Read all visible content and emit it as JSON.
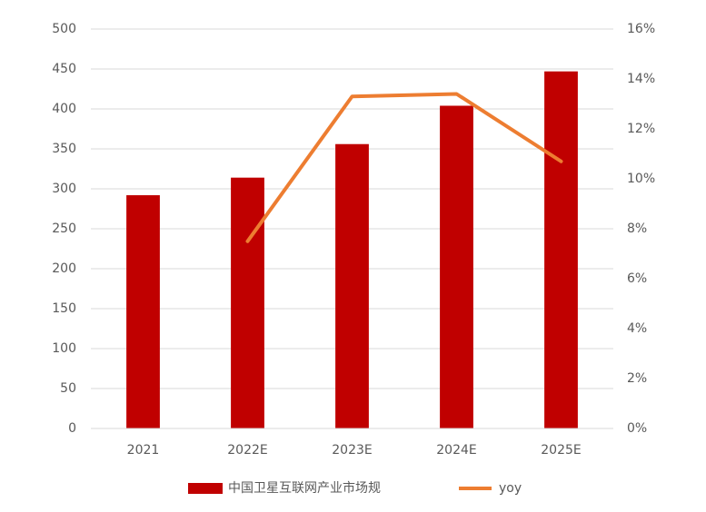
{
  "chart_data": {
    "type": "bar",
    "categories": [
      "2021",
      "2022E",
      "2023E",
      "2024E",
      "2025E"
    ],
    "series": [
      {
        "name": "中国卫星互联网产业市场规",
        "type": "bar",
        "color": "#c00000",
        "values": [
          292,
          314,
          356,
          404,
          447
        ]
      },
      {
        "name": "yoy",
        "type": "line",
        "axis": "y2",
        "color": "#ed7d31",
        "values": [
          null,
          7.5,
          13.3,
          13.4,
          10.7
        ]
      }
    ],
    "ylim": [
      0,
      500
    ],
    "yticks": [
      0,
      50,
      100,
      150,
      200,
      250,
      300,
      350,
      400,
      450,
      500
    ],
    "y2lim": [
      0,
      16
    ],
    "y2ticks": [
      {
        "value": 0,
        "label": "0%"
      },
      {
        "value": 2,
        "label": "2%"
      },
      {
        "value": 4,
        "label": "4%"
      },
      {
        "value": 6,
        "label": "6%"
      },
      {
        "value": 8,
        "label": "8%"
      },
      {
        "value": 10,
        "label": "10%"
      },
      {
        "value": 12,
        "label": "12%"
      },
      {
        "value": 14,
        "label": "14%"
      },
      {
        "value": 16,
        "label": "16%"
      }
    ],
    "grid": true
  }
}
